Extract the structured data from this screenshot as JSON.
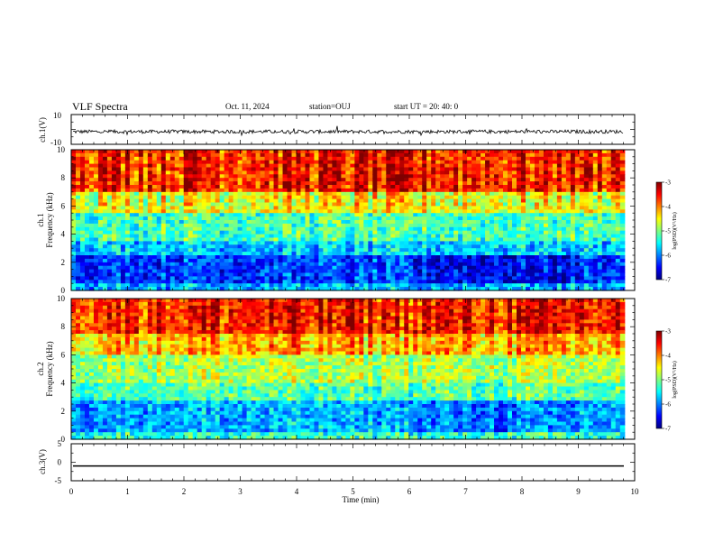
{
  "header": {
    "title": "VLF Spectra",
    "date": "Oct. 11, 2024",
    "station": "station=OUJ",
    "start": "start  UT =   20: 40: 0"
  },
  "colors": {
    "colormap": [
      "#00007f",
      "#0000ff",
      "#007fff",
      "#00ffff",
      "#7fff7f",
      "#ffff00",
      "#ff7f00",
      "#ff0000",
      "#7f0000"
    ],
    "trace": "#000000"
  },
  "chart_data": [
    {
      "type": "line",
      "ylabel": "ch.1(V)",
      "ylim": [
        -10,
        10
      ],
      "yticks": [
        "10",
        "-10"
      ],
      "xlim": [
        0,
        10
      ],
      "note_level": -1.5,
      "amplitude": 1.2
    },
    {
      "type": "heatmap",
      "ylabel_lines": [
        "ch.1",
        "Frequency (kHz)"
      ],
      "ylim": [
        0,
        10
      ],
      "yticks": [
        "0",
        "2",
        "4",
        "6",
        "8",
        "10"
      ],
      "xlim": [
        0,
        10
      ],
      "data_end_x": 9.82,
      "colorbar": {
        "label": "log(PSD)(V²/Hz)",
        "range": [
          -7,
          -3
        ],
        "ticks": [
          "-3",
          "-4",
          "-5",
          "-6",
          "-7"
        ]
      }
    },
    {
      "type": "heatmap",
      "ylabel_lines": [
        "ch.2",
        "Frequency (kHz)"
      ],
      "ylim": [
        0,
        10
      ],
      "yticks": [
        "0",
        "2",
        "4",
        "6",
        "8",
        "10"
      ],
      "xlim": [
        0,
        10
      ],
      "data_end_x": 9.82,
      "colorbar": {
        "label": "log(PSD)(V²/Hz)",
        "range": [
          -7,
          -3
        ],
        "ticks": [
          "-3",
          "-4",
          "-5",
          "-6",
          "-7"
        ]
      }
    },
    {
      "type": "line",
      "ylabel": "ch.3(V)",
      "ylim": [
        -5,
        5
      ],
      "yticks": [
        "5",
        "0",
        "-5"
      ],
      "xlim": [
        0,
        10
      ],
      "value": -1.0,
      "xlabel": "Time (min)",
      "xticks": [
        "0",
        "1",
        "2",
        "3",
        "4",
        "5",
        "6",
        "7",
        "8",
        "9",
        "10"
      ]
    }
  ]
}
